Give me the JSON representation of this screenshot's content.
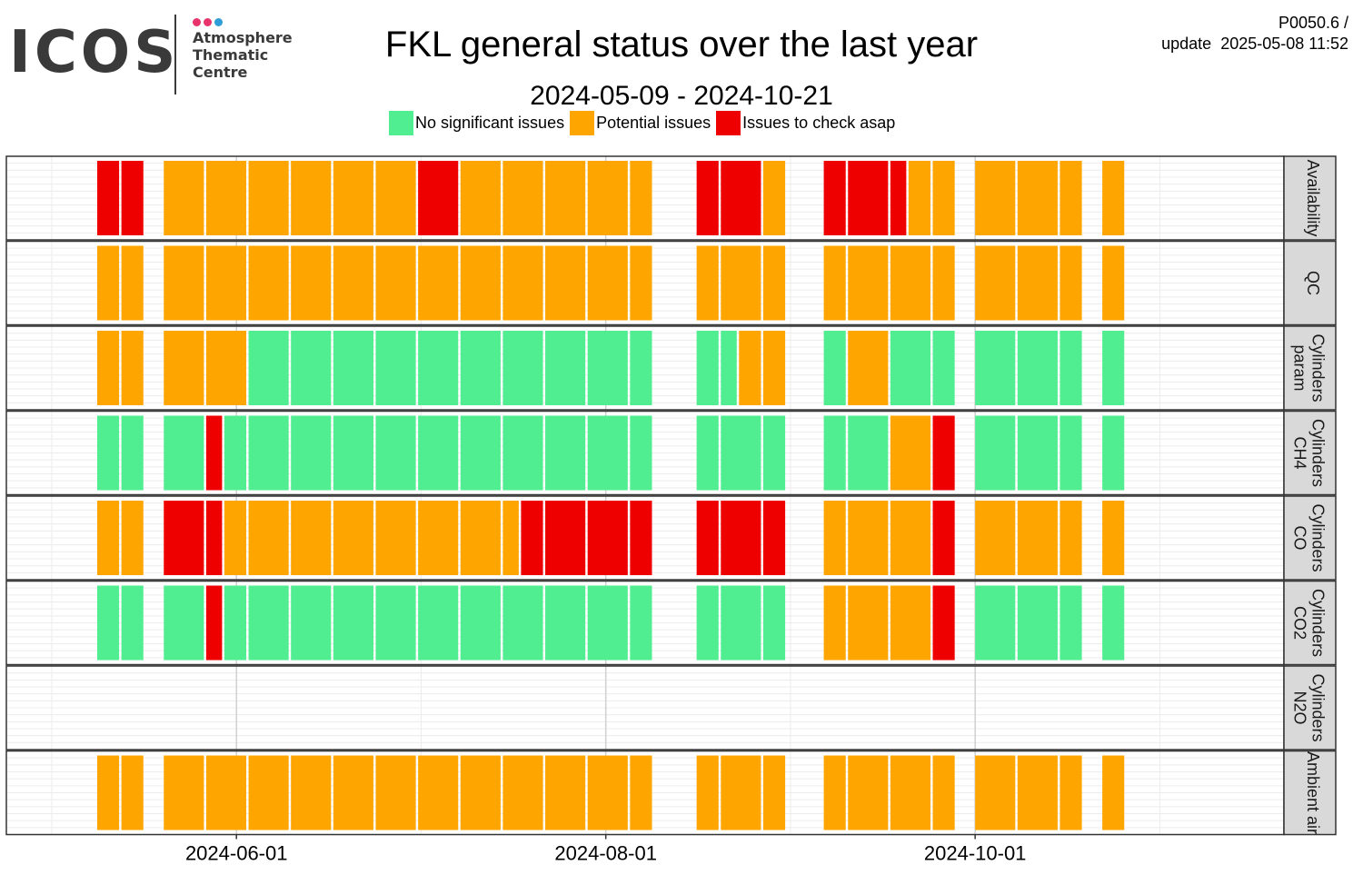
{
  "logo": {
    "word": "ICOS",
    "lines": [
      "Atmosphere",
      "Thematic",
      "Centre"
    ],
    "dot_colors": [
      "#e8336d",
      "#e8336d",
      "#2f9ed8"
    ]
  },
  "header": {
    "title": "FKL general status over the last year",
    "date_range": "2024-05-09 - 2024-10-21",
    "code": "P0050.6 /",
    "update_label": "update",
    "update_time": "2025-05-08 11:52"
  },
  "colors": {
    "G": "#50ee90",
    "O": "#ffa500",
    "R": "#ee0000",
    "panel_border": "#333333",
    "strip_fill": "#d9d9d9",
    "grid_major": "#d0d0d0",
    "grid_minor": "#ececec"
  },
  "chart_data": {
    "type": "heatmap",
    "title": "FKL general status over the last year",
    "subtitle": "2024-05-09 - 2024-10-21",
    "x_axis": {
      "range": [
        "2024-04-24",
        "2024-11-21"
      ],
      "ticks": [
        "2024-06-01",
        "2024-08-01",
        "2024-10-01"
      ]
    },
    "legend": [
      {
        "key": "G",
        "label": "No significant issues"
      },
      {
        "key": "O",
        "label": "Potential issues"
      },
      {
        "key": "R",
        "label": "Issues to check asap"
      }
    ],
    "panels": [
      {
        "name": "Availability",
        "segments": [
          [
            "2024-05-09",
            "2024-05-13",
            "R"
          ],
          [
            "2024-05-13",
            "2024-05-17",
            "R"
          ],
          [
            "2024-05-20",
            "2024-05-27",
            "O"
          ],
          [
            "2024-05-27",
            "2024-06-03",
            "O"
          ],
          [
            "2024-06-03",
            "2024-06-10",
            "O"
          ],
          [
            "2024-06-10",
            "2024-06-17",
            "O"
          ],
          [
            "2024-06-17",
            "2024-06-24",
            "O"
          ],
          [
            "2024-06-24",
            "2024-07-01",
            "O"
          ],
          [
            "2024-07-01",
            "2024-07-08",
            "R"
          ],
          [
            "2024-07-08",
            "2024-07-15",
            "O"
          ],
          [
            "2024-07-15",
            "2024-07-22",
            "O"
          ],
          [
            "2024-07-22",
            "2024-07-29",
            "O"
          ],
          [
            "2024-07-29",
            "2024-08-05",
            "O"
          ],
          [
            "2024-08-05",
            "2024-08-09",
            "O"
          ],
          [
            "2024-08-16",
            "2024-08-20",
            "R"
          ],
          [
            "2024-08-20",
            "2024-08-27",
            "R"
          ],
          [
            "2024-08-27",
            "2024-08-31",
            "O"
          ],
          [
            "2024-09-06",
            "2024-09-10",
            "R"
          ],
          [
            "2024-09-10",
            "2024-09-17",
            "R"
          ],
          [
            "2024-09-17",
            "2024-09-20",
            "R"
          ],
          [
            "2024-09-20",
            "2024-09-24",
            "O"
          ],
          [
            "2024-09-24",
            "2024-09-28",
            "O"
          ],
          [
            "2024-10-01",
            "2024-10-08",
            "O"
          ],
          [
            "2024-10-08",
            "2024-10-15",
            "O"
          ],
          [
            "2024-10-15",
            "2024-10-19",
            "O"
          ],
          [
            "2024-10-22",
            "2024-10-26",
            "O"
          ]
        ]
      },
      {
        "name": "QC",
        "segments": [
          [
            "2024-05-09",
            "2024-05-13",
            "O"
          ],
          [
            "2024-05-13",
            "2024-05-17",
            "O"
          ],
          [
            "2024-05-20",
            "2024-05-27",
            "O"
          ],
          [
            "2024-05-27",
            "2024-06-03",
            "O"
          ],
          [
            "2024-06-03",
            "2024-06-10",
            "O"
          ],
          [
            "2024-06-10",
            "2024-06-17",
            "O"
          ],
          [
            "2024-06-17",
            "2024-06-24",
            "O"
          ],
          [
            "2024-06-24",
            "2024-07-01",
            "O"
          ],
          [
            "2024-07-01",
            "2024-07-08",
            "O"
          ],
          [
            "2024-07-08",
            "2024-07-15",
            "O"
          ],
          [
            "2024-07-15",
            "2024-07-22",
            "O"
          ],
          [
            "2024-07-22",
            "2024-07-29",
            "O"
          ],
          [
            "2024-07-29",
            "2024-08-05",
            "O"
          ],
          [
            "2024-08-05",
            "2024-08-09",
            "O"
          ],
          [
            "2024-08-16",
            "2024-08-20",
            "O"
          ],
          [
            "2024-08-20",
            "2024-08-27",
            "O"
          ],
          [
            "2024-08-27",
            "2024-08-31",
            "O"
          ],
          [
            "2024-09-06",
            "2024-09-10",
            "O"
          ],
          [
            "2024-09-10",
            "2024-09-17",
            "O"
          ],
          [
            "2024-09-17",
            "2024-09-24",
            "O"
          ],
          [
            "2024-09-24",
            "2024-09-28",
            "O"
          ],
          [
            "2024-10-01",
            "2024-10-08",
            "O"
          ],
          [
            "2024-10-08",
            "2024-10-15",
            "O"
          ],
          [
            "2024-10-15",
            "2024-10-19",
            "O"
          ],
          [
            "2024-10-22",
            "2024-10-26",
            "O"
          ]
        ]
      },
      {
        "name": "Cylinders param",
        "segments": [
          [
            "2024-05-09",
            "2024-05-13",
            "O"
          ],
          [
            "2024-05-13",
            "2024-05-17",
            "O"
          ],
          [
            "2024-05-20",
            "2024-05-27",
            "O"
          ],
          [
            "2024-05-27",
            "2024-06-03",
            "O"
          ],
          [
            "2024-06-03",
            "2024-06-10",
            "G"
          ],
          [
            "2024-06-10",
            "2024-06-17",
            "G"
          ],
          [
            "2024-06-17",
            "2024-06-24",
            "G"
          ],
          [
            "2024-06-24",
            "2024-07-01",
            "G"
          ],
          [
            "2024-07-01",
            "2024-07-08",
            "G"
          ],
          [
            "2024-07-08",
            "2024-07-15",
            "G"
          ],
          [
            "2024-07-15",
            "2024-07-22",
            "G"
          ],
          [
            "2024-07-22",
            "2024-07-29",
            "G"
          ],
          [
            "2024-07-29",
            "2024-08-05",
            "G"
          ],
          [
            "2024-08-05",
            "2024-08-09",
            "G"
          ],
          [
            "2024-08-16",
            "2024-08-20",
            "G"
          ],
          [
            "2024-08-20",
            "2024-08-23",
            "G"
          ],
          [
            "2024-08-23",
            "2024-08-27",
            "O"
          ],
          [
            "2024-08-27",
            "2024-08-31",
            "O"
          ],
          [
            "2024-09-06",
            "2024-09-10",
            "G"
          ],
          [
            "2024-09-10",
            "2024-09-17",
            "O"
          ],
          [
            "2024-09-17",
            "2024-09-24",
            "G"
          ],
          [
            "2024-09-24",
            "2024-09-28",
            "G"
          ],
          [
            "2024-10-01",
            "2024-10-08",
            "G"
          ],
          [
            "2024-10-08",
            "2024-10-15",
            "G"
          ],
          [
            "2024-10-15",
            "2024-10-19",
            "G"
          ],
          [
            "2024-10-22",
            "2024-10-26",
            "G"
          ]
        ]
      },
      {
        "name": "Cylinders CH4",
        "segments": [
          [
            "2024-05-09",
            "2024-05-13",
            "G"
          ],
          [
            "2024-05-13",
            "2024-05-17",
            "G"
          ],
          [
            "2024-05-20",
            "2024-05-27",
            "G"
          ],
          [
            "2024-05-27",
            "2024-05-30",
            "R"
          ],
          [
            "2024-05-30",
            "2024-06-03",
            "G"
          ],
          [
            "2024-06-03",
            "2024-06-10",
            "G"
          ],
          [
            "2024-06-10",
            "2024-06-17",
            "G"
          ],
          [
            "2024-06-17",
            "2024-06-24",
            "G"
          ],
          [
            "2024-06-24",
            "2024-07-01",
            "G"
          ],
          [
            "2024-07-01",
            "2024-07-08",
            "G"
          ],
          [
            "2024-07-08",
            "2024-07-15",
            "G"
          ],
          [
            "2024-07-15",
            "2024-07-22",
            "G"
          ],
          [
            "2024-07-22",
            "2024-07-29",
            "G"
          ],
          [
            "2024-07-29",
            "2024-08-05",
            "G"
          ],
          [
            "2024-08-05",
            "2024-08-09",
            "G"
          ],
          [
            "2024-08-16",
            "2024-08-20",
            "G"
          ],
          [
            "2024-08-20",
            "2024-08-27",
            "G"
          ],
          [
            "2024-08-27",
            "2024-08-31",
            "G"
          ],
          [
            "2024-09-06",
            "2024-09-10",
            "G"
          ],
          [
            "2024-09-10",
            "2024-09-17",
            "G"
          ],
          [
            "2024-09-17",
            "2024-09-24",
            "O"
          ],
          [
            "2024-09-24",
            "2024-09-28",
            "R"
          ],
          [
            "2024-10-01",
            "2024-10-08",
            "G"
          ],
          [
            "2024-10-08",
            "2024-10-15",
            "G"
          ],
          [
            "2024-10-15",
            "2024-10-19",
            "G"
          ],
          [
            "2024-10-22",
            "2024-10-26",
            "G"
          ]
        ]
      },
      {
        "name": "Cylinders CO",
        "segments": [
          [
            "2024-05-09",
            "2024-05-13",
            "O"
          ],
          [
            "2024-05-13",
            "2024-05-17",
            "O"
          ],
          [
            "2024-05-20",
            "2024-05-27",
            "R"
          ],
          [
            "2024-05-27",
            "2024-05-30",
            "R"
          ],
          [
            "2024-05-30",
            "2024-06-03",
            "O"
          ],
          [
            "2024-06-03",
            "2024-06-10",
            "O"
          ],
          [
            "2024-06-10",
            "2024-06-17",
            "O"
          ],
          [
            "2024-06-17",
            "2024-06-24",
            "O"
          ],
          [
            "2024-06-24",
            "2024-07-01",
            "O"
          ],
          [
            "2024-07-01",
            "2024-07-08",
            "O"
          ],
          [
            "2024-07-08",
            "2024-07-15",
            "O"
          ],
          [
            "2024-07-15",
            "2024-07-18",
            "O"
          ],
          [
            "2024-07-18",
            "2024-07-22",
            "R"
          ],
          [
            "2024-07-22",
            "2024-07-29",
            "R"
          ],
          [
            "2024-07-29",
            "2024-08-05",
            "R"
          ],
          [
            "2024-08-05",
            "2024-08-09",
            "R"
          ],
          [
            "2024-08-16",
            "2024-08-20",
            "R"
          ],
          [
            "2024-08-20",
            "2024-08-27",
            "R"
          ],
          [
            "2024-08-27",
            "2024-08-31",
            "R"
          ],
          [
            "2024-09-06",
            "2024-09-10",
            "O"
          ],
          [
            "2024-09-10",
            "2024-09-17",
            "O"
          ],
          [
            "2024-09-17",
            "2024-09-24",
            "O"
          ],
          [
            "2024-09-24",
            "2024-09-28",
            "R"
          ],
          [
            "2024-10-01",
            "2024-10-08",
            "O"
          ],
          [
            "2024-10-08",
            "2024-10-15",
            "O"
          ],
          [
            "2024-10-15",
            "2024-10-19",
            "O"
          ],
          [
            "2024-10-22",
            "2024-10-26",
            "O"
          ]
        ]
      },
      {
        "name": "Cylinders CO2",
        "segments": [
          [
            "2024-05-09",
            "2024-05-13",
            "G"
          ],
          [
            "2024-05-13",
            "2024-05-17",
            "G"
          ],
          [
            "2024-05-20",
            "2024-05-27",
            "G"
          ],
          [
            "2024-05-27",
            "2024-05-30",
            "R"
          ],
          [
            "2024-05-30",
            "2024-06-03",
            "G"
          ],
          [
            "2024-06-03",
            "2024-06-10",
            "G"
          ],
          [
            "2024-06-10",
            "2024-06-17",
            "G"
          ],
          [
            "2024-06-17",
            "2024-06-24",
            "G"
          ],
          [
            "2024-06-24",
            "2024-07-01",
            "G"
          ],
          [
            "2024-07-01",
            "2024-07-08",
            "G"
          ],
          [
            "2024-07-08",
            "2024-07-15",
            "G"
          ],
          [
            "2024-07-15",
            "2024-07-22",
            "G"
          ],
          [
            "2024-07-22",
            "2024-07-29",
            "G"
          ],
          [
            "2024-07-29",
            "2024-08-05",
            "G"
          ],
          [
            "2024-08-05",
            "2024-08-09",
            "G"
          ],
          [
            "2024-08-16",
            "2024-08-20",
            "G"
          ],
          [
            "2024-08-20",
            "2024-08-27",
            "G"
          ],
          [
            "2024-08-27",
            "2024-08-31",
            "G"
          ],
          [
            "2024-09-06",
            "2024-09-10",
            "O"
          ],
          [
            "2024-09-10",
            "2024-09-17",
            "O"
          ],
          [
            "2024-09-17",
            "2024-09-24",
            "O"
          ],
          [
            "2024-09-24",
            "2024-09-28",
            "R"
          ],
          [
            "2024-10-01",
            "2024-10-08",
            "G"
          ],
          [
            "2024-10-08",
            "2024-10-15",
            "G"
          ],
          [
            "2024-10-15",
            "2024-10-19",
            "G"
          ],
          [
            "2024-10-22",
            "2024-10-26",
            "G"
          ]
        ]
      },
      {
        "name": "Cylinders N2O",
        "segments": []
      },
      {
        "name": "Ambient air",
        "segments": [
          [
            "2024-05-09",
            "2024-05-13",
            "O"
          ],
          [
            "2024-05-13",
            "2024-05-17",
            "O"
          ],
          [
            "2024-05-20",
            "2024-05-27",
            "O"
          ],
          [
            "2024-05-27",
            "2024-06-03",
            "O"
          ],
          [
            "2024-06-03",
            "2024-06-10",
            "O"
          ],
          [
            "2024-06-10",
            "2024-06-17",
            "O"
          ],
          [
            "2024-06-17",
            "2024-06-24",
            "O"
          ],
          [
            "2024-06-24",
            "2024-07-01",
            "O"
          ],
          [
            "2024-07-01",
            "2024-07-08",
            "O"
          ],
          [
            "2024-07-08",
            "2024-07-15",
            "O"
          ],
          [
            "2024-07-15",
            "2024-07-22",
            "O"
          ],
          [
            "2024-07-22",
            "2024-07-29",
            "O"
          ],
          [
            "2024-07-29",
            "2024-08-05",
            "O"
          ],
          [
            "2024-08-05",
            "2024-08-09",
            "O"
          ],
          [
            "2024-08-16",
            "2024-08-20",
            "O"
          ],
          [
            "2024-08-20",
            "2024-08-27",
            "O"
          ],
          [
            "2024-08-27",
            "2024-08-31",
            "O"
          ],
          [
            "2024-09-06",
            "2024-09-10",
            "O"
          ],
          [
            "2024-09-10",
            "2024-09-17",
            "O"
          ],
          [
            "2024-09-17",
            "2024-09-24",
            "O"
          ],
          [
            "2024-09-24",
            "2024-09-28",
            "O"
          ],
          [
            "2024-10-01",
            "2024-10-08",
            "O"
          ],
          [
            "2024-10-08",
            "2024-10-15",
            "O"
          ],
          [
            "2024-10-15",
            "2024-10-19",
            "O"
          ],
          [
            "2024-10-22",
            "2024-10-26",
            "O"
          ]
        ]
      }
    ]
  }
}
